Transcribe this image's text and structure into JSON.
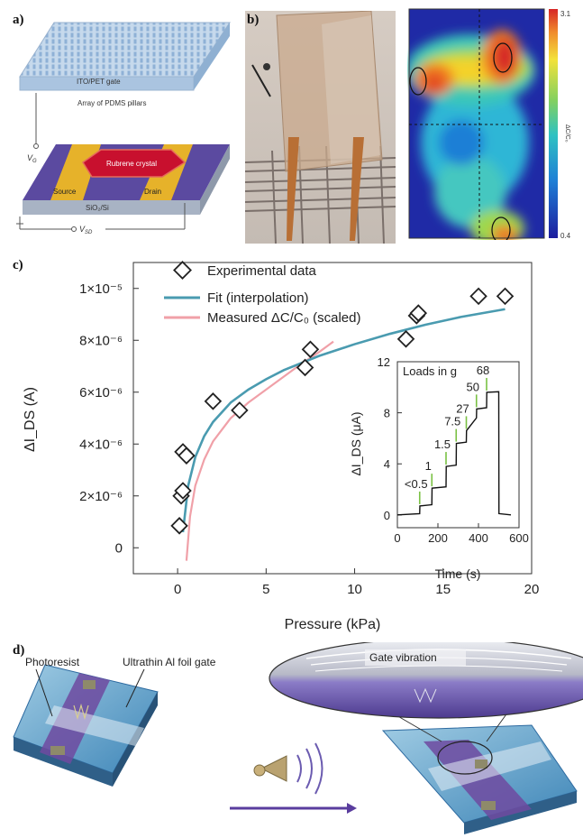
{
  "panels": {
    "a": "a)",
    "b": "b)",
    "c": "c)",
    "d": "d)"
  },
  "panel_a": {
    "gate_label": "ITO/PET gate",
    "pillars_label": "Array of PDMS pillars",
    "crystal_label": "Rubrene crystal",
    "source_label": "Source",
    "drain_label": "Drain",
    "substrate_label": "SiO₂/Si",
    "vg_label": "V",
    "vg_sub": "G",
    "vsd_label": "V",
    "vsd_sub": "SD",
    "colors": {
      "gate": "#b9cfe6",
      "substrate": "#5b4aa0",
      "electrode": "#e6b22a",
      "crystal": "#c8102e"
    }
  },
  "panel_b": {
    "colorbar_max": "3.1",
    "colorbar_min": "0.4",
    "colorbar_label": "ΔC/C₀"
  },
  "chart_data": [
    {
      "type": "scatter",
      "title": "",
      "xlabel": "Pressure (kPa)",
      "ylabel": "ΔI_DS (A)",
      "xlim": [
        -2.5,
        20
      ],
      "ylim": [
        -1e-06,
        1.1e-05
      ],
      "xticks": [
        "0",
        "5",
        "10",
        "15",
        "20"
      ],
      "yticks": [
        "0",
        "2×10⁻⁶",
        "4×10⁻⁶",
        "6×10⁻⁶",
        "8×10⁻⁶",
        "1×10⁻⁵"
      ],
      "legend": [
        "Experimental data",
        "Fit (interpolation)",
        "Measured ΔC/C₀ (scaled)"
      ],
      "colors": {
        "fit": "#4a9bb0",
        "measured": "#f0a0a8",
        "markers": "#222222"
      },
      "series": [
        {
          "name": "Experimental data",
          "x": [
            0.1,
            0.2,
            0.3,
            0.3,
            0.5,
            2.0,
            3.5,
            7.2,
            7.5,
            12.9,
            13.5,
            13.6,
            17.0,
            18.5
          ],
          "y": [
            8.5e-07,
            2e-06,
            2.2e-06,
            3.7e-06,
            3.55e-06,
            5.65e-06,
            5.3e-06,
            6.95e-06,
            7.65e-06,
            8.05e-06,
            8.95e-06,
            9.05e-06,
            9.7e-06,
            9.7e-06
          ]
        },
        {
          "name": "Fit (interpolation)",
          "x": [
            0.3,
            0.6,
            1.0,
            1.5,
            2.0,
            3.0,
            4.0,
            5.0,
            6.0,
            8.0,
            10.0,
            12.0,
            14.0,
            16.0,
            18.5
          ],
          "y": [
            6e-07,
            2.4e-06,
            3.5e-06,
            4.3e-06,
            4.85e-06,
            5.6e-06,
            6.1e-06,
            6.5e-06,
            6.85e-06,
            7.4e-06,
            7.85e-06,
            8.25e-06,
            8.6e-06,
            8.9e-06,
            9.2e-06
          ]
        },
        {
          "name": "Measured ΔC/C₀ (scaled)",
          "x": [
            0.5,
            0.7,
            1.0,
            1.5,
            2.0,
            3.0,
            4.0,
            5.0,
            6.0,
            7.0,
            8.0,
            8.8
          ],
          "y": [
            -5e-07,
            1.2e-06,
            2.4e-06,
            3.4e-06,
            4.1e-06,
            5e-06,
            5.6e-06,
            6.1e-06,
            6.6e-06,
            7.1e-06,
            7.55e-06,
            7.95e-06
          ]
        }
      ]
    },
    {
      "type": "line",
      "title": "Loads in g",
      "xlabel": "Time (s)",
      "ylabel": "ΔI_DS (μA)",
      "xlim": [
        0,
        600
      ],
      "ylim": [
        -1,
        12
      ],
      "xticks": [
        "0",
        "200",
        "400",
        "600"
      ],
      "yticks": [
        "0",
        "4",
        "8",
        "12"
      ],
      "load_labels": [
        "<0.5",
        "1",
        "1.5",
        "7.5",
        "27",
        "50",
        "68"
      ],
      "load_times": [
        110,
        170,
        240,
        290,
        340,
        390,
        440
      ],
      "colors": {
        "trace": "#111111",
        "load_marker": "#7ac143"
      },
      "series": [
        {
          "name": "ΔI_DS",
          "x": [
            0,
            110,
            111,
            170,
            171,
            240,
            241,
            290,
            291,
            340,
            341,
            390,
            391,
            440,
            441,
            500,
            501,
            560
          ],
          "y": [
            0,
            0.1,
            0.7,
            0.8,
            2.1,
            2.2,
            3.8,
            3.9,
            5.6,
            5.7,
            6.6,
            7.6,
            8.3,
            8.4,
            9.6,
            9.65,
            0.1,
            0
          ]
        }
      ]
    }
  ],
  "panel_d": {
    "photoresist_label": "Photoresist",
    "foil_label": "Ultrathin Al foil gate",
    "vibration_label": "Gate vibration"
  }
}
